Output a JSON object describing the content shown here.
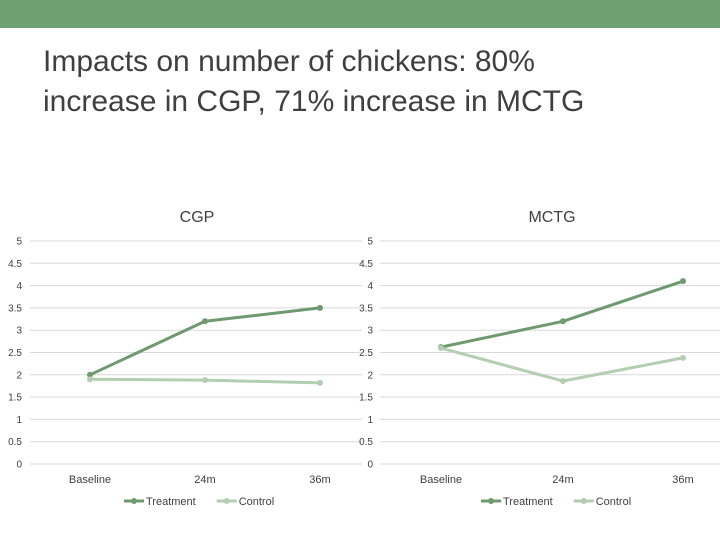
{
  "slide": {
    "title_line1": "Impacts on number of chickens: 80%",
    "title_line2": "increase in CGP, 71% increase in MCTG",
    "band_color": "#6fa073"
  },
  "colors": {
    "treatment": "#6f9a6f",
    "control": "#b3ceb0",
    "grid": "#d9d9d9",
    "text": "#404040"
  },
  "chart_data": [
    {
      "type": "line",
      "title": "CGP",
      "categories": [
        "Baseline",
        "24m",
        "36m"
      ],
      "series": [
        {
          "name": "Treatment",
          "values": [
            2.0,
            3.2,
            3.5
          ]
        },
        {
          "name": "Control",
          "values": [
            1.9,
            1.88,
            1.82
          ]
        }
      ],
      "ylim": [
        0,
        5
      ],
      "yticks": [
        "0",
        "0.5",
        "1",
        "1.5",
        "2",
        "2.5",
        "3",
        "3.5",
        "4",
        "4.5",
        "5"
      ],
      "grid": true,
      "legend": "bottom"
    },
    {
      "type": "line",
      "title": "MCTG",
      "categories": [
        "Baseline",
        "24m",
        "36m"
      ],
      "series": [
        {
          "name": "Treatment",
          "values": [
            2.62,
            3.2,
            4.1
          ]
        },
        {
          "name": "Control",
          "values": [
            2.6,
            1.86,
            2.38
          ]
        }
      ],
      "ylim": [
        0,
        5
      ],
      "yticks": [
        "0",
        "0.5",
        "1",
        "1.5",
        "2",
        "2.5",
        "3",
        "3.5",
        "4",
        "4.5",
        "5"
      ],
      "grid": true,
      "legend": "bottom"
    }
  ]
}
